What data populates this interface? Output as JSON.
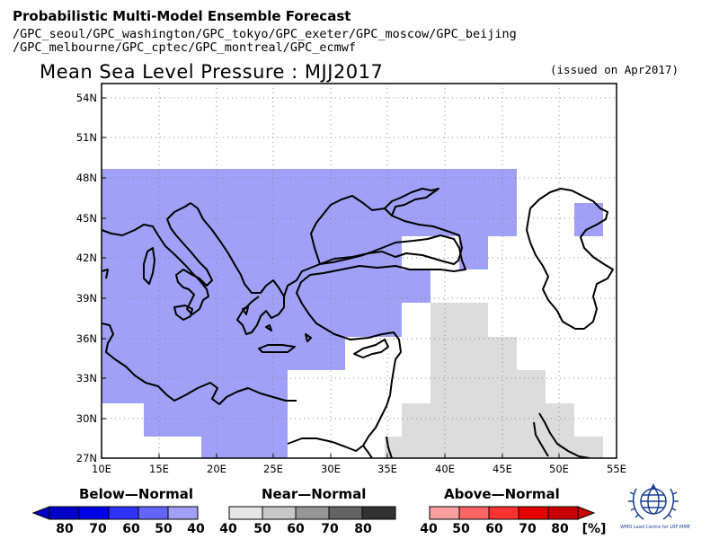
{
  "header": {
    "title": "Probabilistic Multi-Model Ensemble Forecast",
    "line1": "/GPC_seoul/GPC_washington/GPC_tokyo/GPC_exeter/GPC_moscow/GPC_beijing",
    "line2": "/GPC_melbourne/GPC_cptec/GPC_montreal/GPC_ecmwf"
  },
  "map": {
    "title": "Mean Sea Level Pressure : MJJ2017",
    "issued": "(issued on Apr2017)",
    "lon_ticks": [
      "10E",
      "15E",
      "20E",
      "25E",
      "30E",
      "35E",
      "40E",
      "45E",
      "50E",
      "55E"
    ],
    "lat_ticks": [
      "54N",
      "51N",
      "48N",
      "45N",
      "42N",
      "39N",
      "36N",
      "33N",
      "30N",
      "27N"
    ],
    "lon_range": [
      10,
      55
    ],
    "lat_range": [
      27,
      55
    ],
    "colors": {
      "below_normal_40": "#a0a0f8",
      "near_normal_40": "#dcdcdc",
      "coastline": "#000000",
      "grid": "#888888"
    }
  },
  "legend": {
    "below": {
      "title": "Below—Normal",
      "labels": [
        "80",
        "70",
        "60",
        "50",
        "40"
      ],
      "colors": [
        "#0000c8",
        "#0000e6",
        "#3232ff",
        "#6464ff",
        "#a0a0f8"
      ]
    },
    "near": {
      "title": "Near—Normal",
      "labels": [
        "40",
        "50",
        "60",
        "70",
        "80"
      ],
      "colors": [
        "#e6e6e6",
        "#c8c8c8",
        "#969696",
        "#646464",
        "#323232"
      ]
    },
    "above": {
      "title": "Above—Normal",
      "labels": [
        "40",
        "50",
        "60",
        "70",
        "80"
      ],
      "colors": [
        "#ffa0a0",
        "#ff6464",
        "#ff3232",
        "#e60000",
        "#c80000"
      ],
      "unit": "[%]"
    }
  },
  "logo": {
    "caption": "WMO Lead Centre for LRF MME"
  }
}
